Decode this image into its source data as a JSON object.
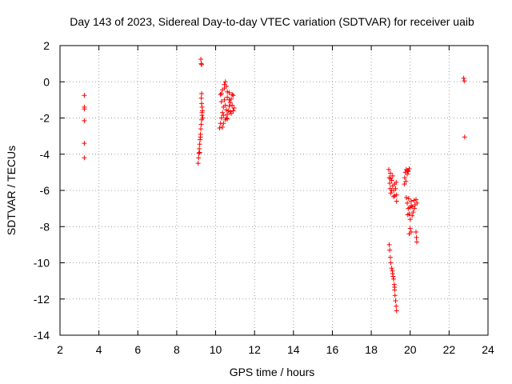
{
  "chart_data": {
    "type": "scatter",
    "title": "Day 143 of 2023, Sidereal Day-to-day VTEC variation (SDTVAR) for receiver uaib",
    "xlabel": "GPS time / hours",
    "ylabel": "SDTVAR / TECUs",
    "xlim": [
      2,
      24
    ],
    "ylim": [
      -14,
      2
    ],
    "xticks": [
      2,
      4,
      6,
      8,
      10,
      12,
      14,
      16,
      18,
      20,
      22,
      24
    ],
    "yticks": [
      -14,
      -12,
      -10,
      -8,
      -6,
      -4,
      -2,
      0,
      2
    ],
    "grid": true,
    "legend": "none",
    "marker": "plus",
    "color": "#ff0000",
    "series": [
      {
        "name": "SDTVAR",
        "points": [
          [
            3.25,
            -0.75
          ],
          [
            3.25,
            -1.4
          ],
          [
            3.25,
            -1.5
          ],
          [
            3.25,
            -2.15
          ],
          [
            3.25,
            -3.4
          ],
          [
            3.25,
            -4.2
          ],
          [
            9.1,
            -4.5
          ],
          [
            9.12,
            -4.2
          ],
          [
            9.14,
            -3.95
          ],
          [
            9.16,
            -3.7
          ],
          [
            9.18,
            -3.45
          ],
          [
            9.2,
            -3.2
          ],
          [
            9.22,
            -2.9
          ],
          [
            9.24,
            -2.6
          ],
          [
            9.26,
            -2.35
          ],
          [
            9.28,
            -2.1
          ],
          [
            9.3,
            -1.85
          ],
          [
            9.32,
            -1.6
          ],
          [
            9.3,
            -1.4
          ],
          [
            9.28,
            -1.2
          ],
          [
            9.26,
            -0.9
          ],
          [
            9.28,
            -0.65
          ],
          [
            9.24,
            1.25
          ],
          [
            9.26,
            1.0
          ],
          [
            9.28,
            0.95
          ],
          [
            9.3,
            -1.7
          ],
          [
            9.34,
            -2.0
          ],
          [
            9.22,
            -3.05
          ],
          [
            9.18,
            -3.9
          ],
          [
            10.2,
            -2.55
          ],
          [
            10.25,
            -2.3
          ],
          [
            10.3,
            -2.0
          ],
          [
            10.35,
            -1.7
          ],
          [
            10.4,
            -1.4
          ],
          [
            10.3,
            -1.1
          ],
          [
            10.25,
            -0.7
          ],
          [
            10.35,
            -0.45
          ],
          [
            10.45,
            -0.15
          ],
          [
            10.5,
            0.0
          ],
          [
            10.55,
            -0.25
          ],
          [
            10.6,
            -0.55
          ],
          [
            10.45,
            -1.0
          ],
          [
            10.5,
            -1.3
          ],
          [
            10.55,
            -1.55
          ],
          [
            10.6,
            -1.8
          ],
          [
            10.5,
            -2.1
          ],
          [
            10.4,
            -2.3
          ],
          [
            10.65,
            -1.6
          ],
          [
            10.7,
            -1.35
          ],
          [
            10.75,
            -1.15
          ],
          [
            10.8,
            -0.95
          ],
          [
            10.85,
            -0.7
          ],
          [
            10.9,
            -0.75
          ],
          [
            10.7,
            -0.6
          ],
          [
            10.95,
            -1.45
          ],
          [
            10.9,
            -1.6
          ],
          [
            10.8,
            -1.75
          ],
          [
            10.6,
            -2.05
          ],
          [
            10.35,
            -2.5
          ],
          [
            10.45,
            -0.35
          ],
          [
            10.3,
            -0.65
          ],
          [
            10.85,
            -1.3
          ],
          [
            10.75,
            -1.65
          ],
          [
            10.55,
            -2.0
          ],
          [
            10.4,
            -1.85
          ],
          [
            10.6,
            -0.85
          ],
          [
            10.7,
            -1.0
          ],
          [
            18.9,
            -4.85
          ],
          [
            18.92,
            -5.3
          ],
          [
            18.95,
            -5.6
          ],
          [
            18.97,
            -5.9
          ],
          [
            19.0,
            -6.15
          ],
          [
            19.05,
            -5.45
          ],
          [
            19.1,
            -5.75
          ],
          [
            19.15,
            -6.0
          ],
          [
            19.2,
            -5.65
          ],
          [
            19.25,
            -5.9
          ],
          [
            19.3,
            -6.25
          ],
          [
            19.3,
            -6.6
          ],
          [
            19.0,
            -5.35
          ],
          [
            19.1,
            -5.2
          ],
          [
            19.2,
            -6.3
          ],
          [
            19.28,
            -5.55
          ],
          [
            19.05,
            -6.0
          ],
          [
            18.98,
            -5.05
          ],
          [
            19.15,
            -6.35
          ],
          [
            19.7,
            -5.65
          ],
          [
            19.72,
            -5.3
          ],
          [
            19.75,
            -5.0
          ],
          [
            19.8,
            -4.85
          ],
          [
            19.85,
            -5.1
          ],
          [
            19.9,
            -4.95
          ],
          [
            19.95,
            -4.8
          ],
          [
            19.78,
            -5.5
          ],
          [
            19.88,
            -4.9
          ],
          [
            19.8,
            -6.4
          ],
          [
            19.85,
            -6.7
          ],
          [
            19.9,
            -7.0
          ],
          [
            19.95,
            -7.3
          ],
          [
            20.0,
            -7.6
          ],
          [
            19.92,
            -6.45
          ],
          [
            20.05,
            -6.6
          ],
          [
            20.1,
            -6.9
          ],
          [
            20.15,
            -7.2
          ],
          [
            20.2,
            -6.55
          ],
          [
            20.25,
            -6.8
          ],
          [
            20.3,
            -6.5
          ],
          [
            20.35,
            -6.7
          ],
          [
            20.0,
            -8.1
          ],
          [
            19.95,
            -8.4
          ],
          [
            20.05,
            -8.3
          ],
          [
            20.3,
            -8.3
          ],
          [
            20.32,
            -8.6
          ],
          [
            20.34,
            -8.85
          ],
          [
            20.05,
            -6.85
          ],
          [
            19.88,
            -7.35
          ],
          [
            20.22,
            -7.0
          ],
          [
            20.1,
            -7.4
          ],
          [
            19.98,
            -6.95
          ],
          [
            18.92,
            -9.0
          ],
          [
            18.95,
            -9.3
          ],
          [
            18.98,
            -9.7
          ],
          [
            19.0,
            -10.0
          ],
          [
            19.05,
            -10.3
          ],
          [
            19.1,
            -10.6
          ],
          [
            19.15,
            -10.9
          ],
          [
            19.18,
            -11.2
          ],
          [
            19.2,
            -11.5
          ],
          [
            19.22,
            -11.8
          ],
          [
            19.25,
            -12.1
          ],
          [
            19.28,
            -12.4
          ],
          [
            19.3,
            -12.65
          ],
          [
            19.12,
            -10.75
          ],
          [
            19.2,
            -11.35
          ],
          [
            19.08,
            -10.45
          ],
          [
            22.75,
            0.2
          ],
          [
            22.78,
            0.05
          ],
          [
            22.8,
            -3.05
          ]
        ]
      }
    ]
  }
}
